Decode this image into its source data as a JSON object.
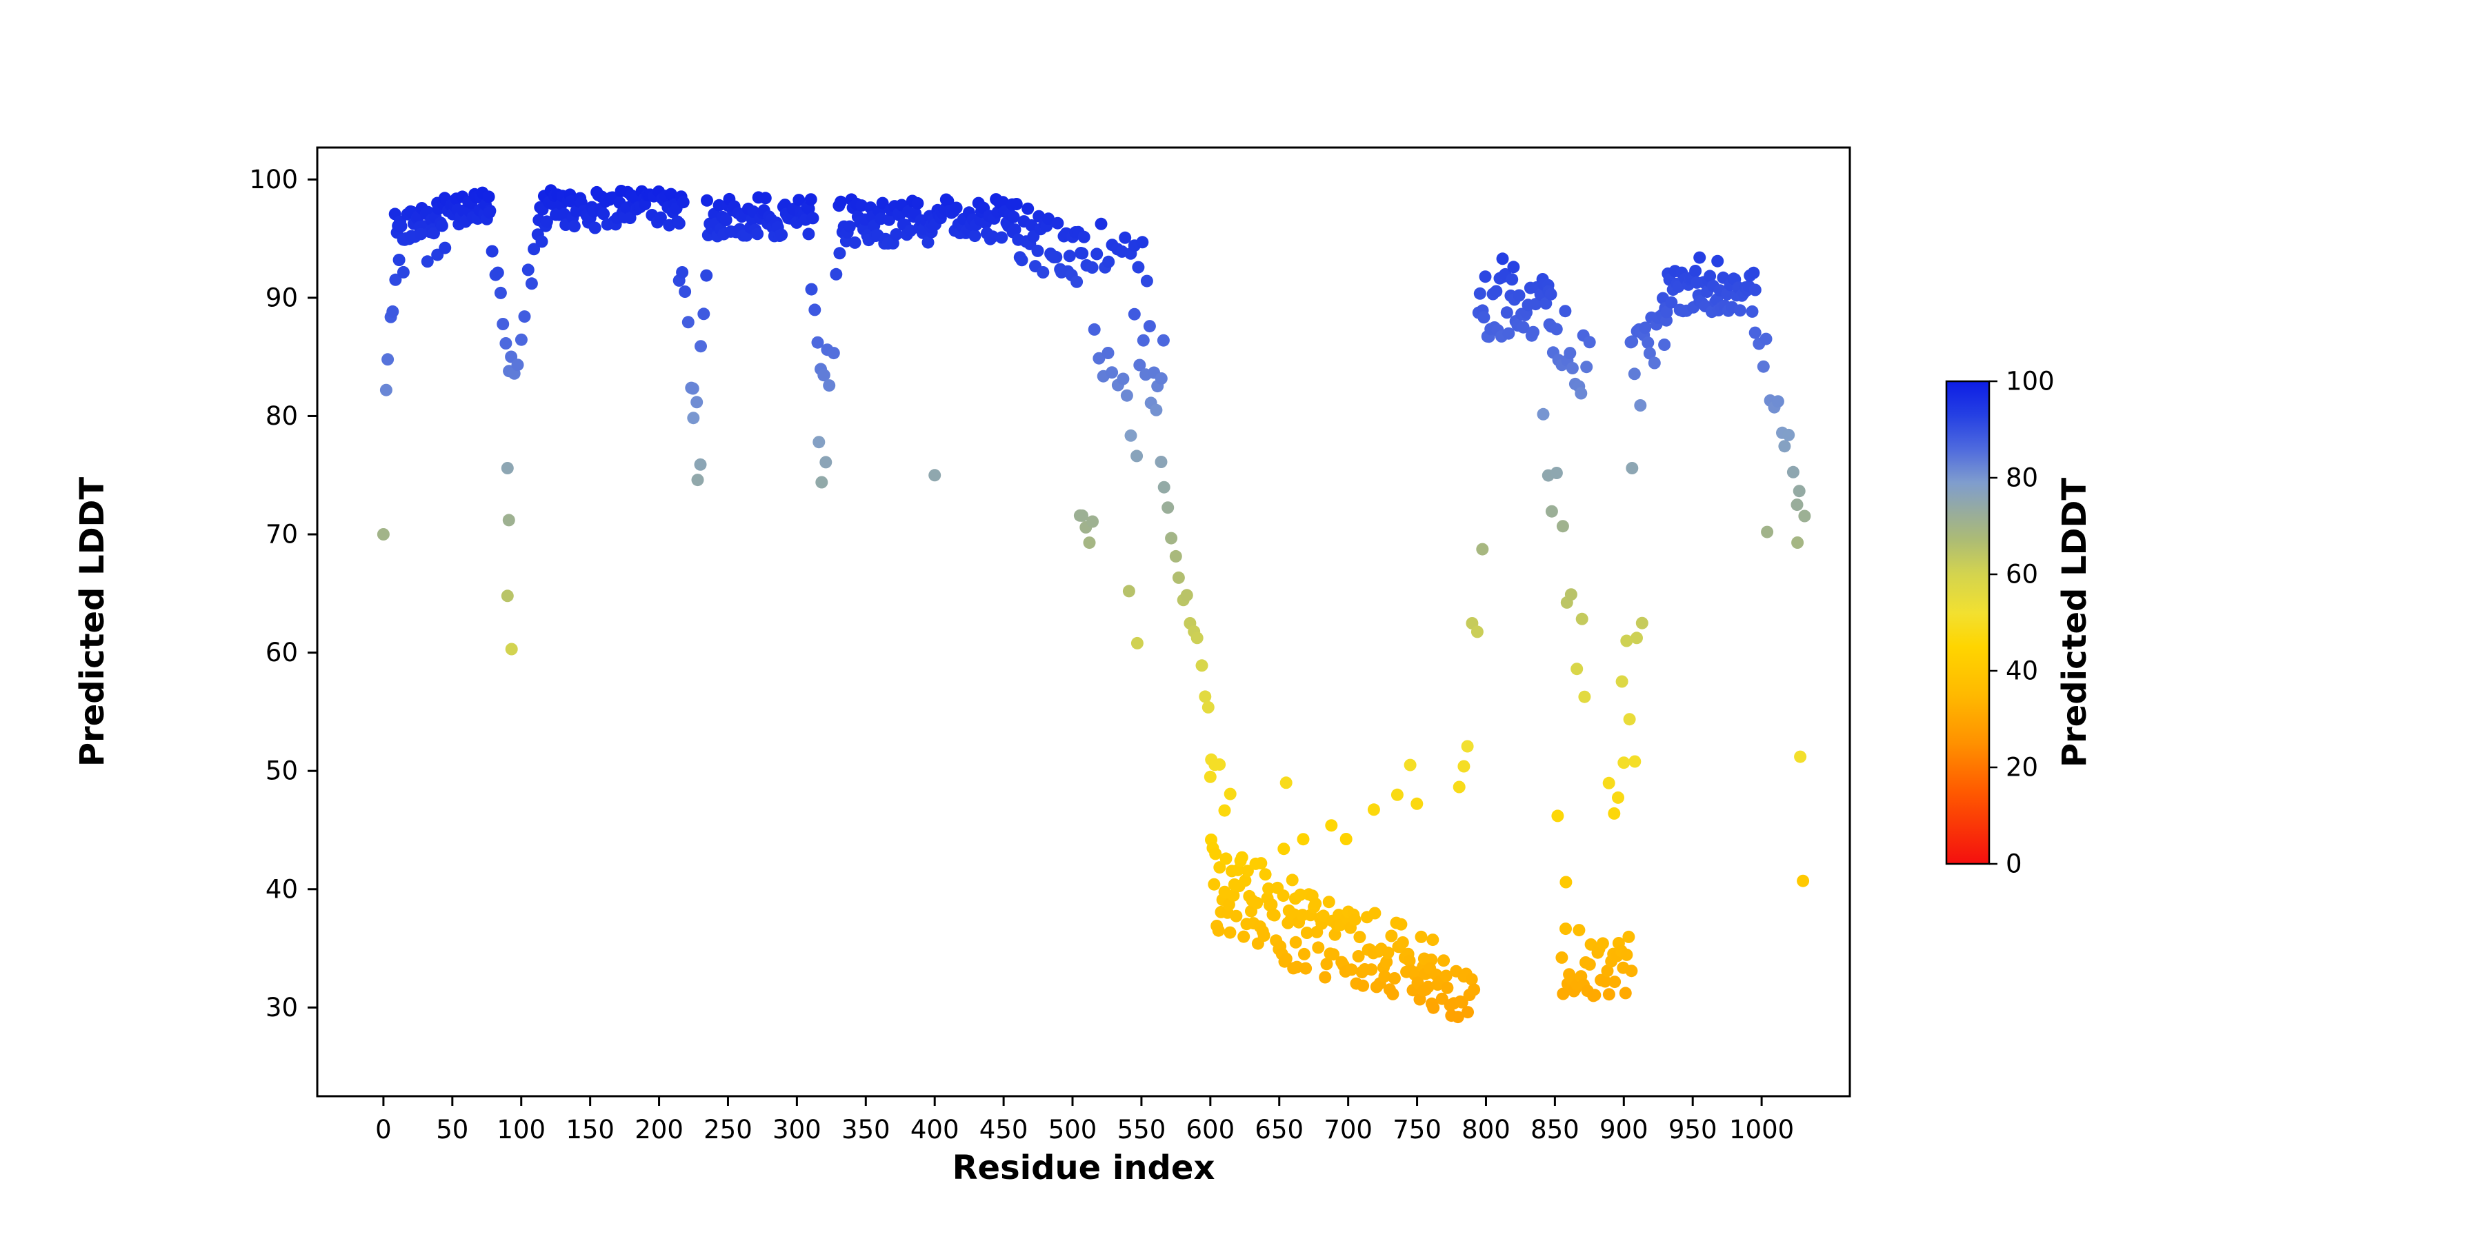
{
  "chart_data": {
    "type": "scatter",
    "title": "",
    "xlabel": "Residue index",
    "ylabel": "Predicted LDDT",
    "xlim": [
      -48,
      1064
    ],
    "ylim": [
      22.5,
      102.7
    ],
    "x_ticks": [
      0,
      50,
      100,
      150,
      200,
      250,
      300,
      350,
      400,
      450,
      500,
      550,
      600,
      650,
      700,
      750,
      800,
      850,
      900,
      950,
      1000
    ],
    "y_ticks": [
      30,
      40,
      50,
      60,
      70,
      80,
      90,
      100
    ],
    "grid": false,
    "legend": "none",
    "marker_radius": 9,
    "seed": 42,
    "colorbar": {
      "label": "Predicted LDDT",
      "min": 0,
      "max": 100,
      "ticks": [
        0,
        20,
        40,
        60,
        80,
        100
      ]
    },
    "colormap_stops": [
      [
        0,
        "#f40f0f"
      ],
      [
        15,
        "#ff5a00"
      ],
      [
        25,
        "#ff9100"
      ],
      [
        35,
        "#ffb900"
      ],
      [
        45,
        "#ffd500"
      ],
      [
        52,
        "#f2e030"
      ],
      [
        60,
        "#d4d44e"
      ],
      [
        67,
        "#adbc74"
      ],
      [
        73,
        "#97ac9e"
      ],
      [
        79,
        "#7f9dce"
      ],
      [
        86,
        "#4e6ade"
      ],
      [
        93,
        "#2540e3"
      ],
      [
        100,
        "#0d1de5"
      ]
    ],
    "point_bands": [
      [
        2,
        12,
        5,
        84,
        94,
        3
      ],
      [
        8,
        78,
        62,
        96,
        98,
        1.4
      ],
      [
        12,
        48,
        6,
        93.5,
        94.5,
        1.5
      ],
      [
        76,
        94,
        9,
        97,
        83,
        2.5
      ],
      [
        94,
        118,
        10,
        85,
        96.5,
        2.5
      ],
      [
        112,
        218,
        85,
        97.5,
        97.5,
        1.6
      ],
      [
        214,
        226,
        6,
        94.5,
        80,
        2.5
      ],
      [
        224,
        236,
        5,
        79,
        92,
        3
      ],
      [
        234,
        312,
        62,
        96.8,
        96.8,
        1.7
      ],
      [
        308,
        320,
        6,
        93.5,
        80,
        3
      ],
      [
        318,
        332,
        6,
        80,
        93,
        3
      ],
      [
        330,
        398,
        54,
        96.5,
        96.5,
        1.9
      ],
      [
        396,
        458,
        48,
        97,
        96.5,
        1.8
      ],
      [
        456,
        508,
        38,
        95.5,
        93,
        2.6
      ],
      [
        504,
        516,
        5,
        71,
        70,
        1.2
      ],
      [
        506,
        556,
        16,
        95,
        92.5,
        2.2
      ],
      [
        514,
        548,
        10,
        87,
        77,
        4
      ],
      [
        544,
        566,
        8,
        86,
        80,
        3
      ],
      [
        560,
        600,
        15,
        79,
        54,
        2.2
      ],
      [
        598,
        616,
        5,
        53,
        46,
        2.5
      ],
      [
        600,
        662,
        58,
        40.5,
        37,
        3.8
      ],
      [
        645,
        758,
        7,
        46,
        45,
        3
      ],
      [
        660,
        762,
        85,
        36.5,
        33.5,
        3.4
      ],
      [
        754,
        792,
        26,
        32,
        31,
        2.4
      ],
      [
        778,
        800,
        6,
        44,
        74,
        4
      ],
      [
        794,
        848,
        42,
        89,
        89.5,
        2.8
      ],
      [
        844,
        876,
        16,
        88,
        83.5,
        3
      ],
      [
        840,
        874,
        10,
        79,
        56,
        4.5
      ],
      [
        854,
        906,
        36,
        34,
        33,
        3
      ],
      [
        888,
        916,
        6,
        44,
        68,
        5
      ],
      [
        904,
        932,
        18,
        84,
        88.5,
        2.6
      ],
      [
        928,
        996,
        56,
        90.5,
        90.5,
        1.8
      ],
      [
        994,
        1032,
        14,
        89,
        71,
        3
      ]
    ],
    "extra_points": [
      [
        0,
        70
      ],
      [
        2,
        82.2
      ],
      [
        90,
        75.6
      ],
      [
        91,
        71.2
      ],
      [
        90,
        64.8
      ],
      [
        93,
        60.3
      ],
      [
        228,
        74.6
      ],
      [
        230,
        75.9
      ],
      [
        316,
        77.8
      ],
      [
        318,
        74.4
      ],
      [
        321,
        76.1
      ],
      [
        400,
        75
      ],
      [
        541,
        65.2
      ],
      [
        547,
        60.8
      ],
      [
        556,
        87.6
      ],
      [
        566,
        86.4
      ],
      [
        600,
        49.5
      ],
      [
        655,
        49
      ],
      [
        745,
        50.5
      ],
      [
        812,
        93.3
      ],
      [
        820,
        92.6
      ],
      [
        852,
        46.2
      ],
      [
        858,
        40.6
      ],
      [
        893,
        46.4
      ],
      [
        900,
        50.7
      ],
      [
        902,
        61
      ],
      [
        908,
        50.8
      ],
      [
        906,
        75.6
      ],
      [
        912,
        80.9
      ],
      [
        955,
        93.4
      ],
      [
        968,
        93.1
      ],
      [
        1004,
        70.2
      ],
      [
        1026,
        69.3
      ],
      [
        1028,
        51.2
      ],
      [
        1030,
        40.7
      ]
    ]
  }
}
